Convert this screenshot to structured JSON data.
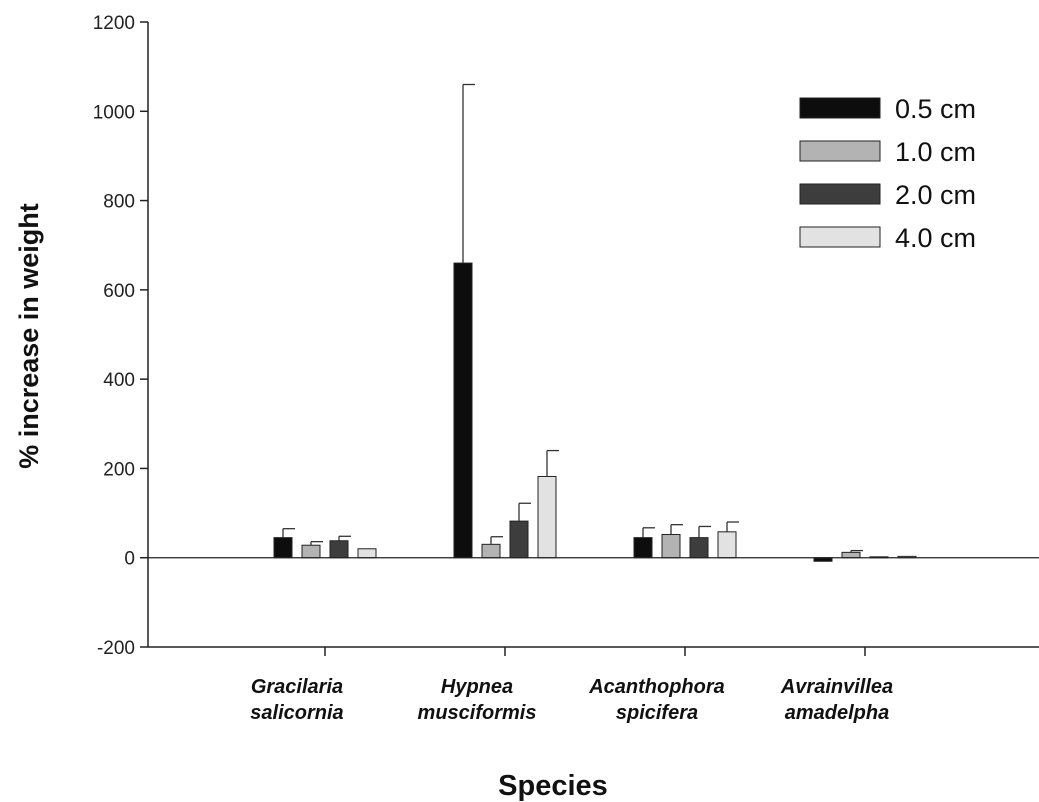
{
  "chart_data": {
    "type": "bar",
    "title": "",
    "xlabel": "Species",
    "ylabel": "% increase in weight",
    "ylim": [
      -200,
      1200
    ],
    "yticks": [
      -200,
      0,
      200,
      400,
      600,
      800,
      1000,
      1200
    ],
    "grid": false,
    "legend_position": "top-right",
    "categories": [
      [
        "Gracilaria",
        "salicornia"
      ],
      [
        "Hypnea",
        "musciformis"
      ],
      [
        "Acanthophora",
        "spicifera"
      ],
      [
        "Avrainvillea",
        "amadelpha"
      ]
    ],
    "series": [
      {
        "name": "0.5 cm",
        "color": "#0d0d0d",
        "values": [
          45,
          660,
          45,
          -8
        ],
        "errors": [
          20,
          400,
          22,
          0
        ]
      },
      {
        "name": "1.0 cm",
        "color": "#b3b3b3",
        "values": [
          28,
          30,
          52,
          12
        ],
        "errors": [
          8,
          17,
          22,
          4
        ]
      },
      {
        "name": "2.0 cm",
        "color": "#3d3d3d",
        "values": [
          38,
          82,
          45,
          2
        ],
        "errors": [
          10,
          40,
          25,
          0
        ]
      },
      {
        "name": "4.0 cm",
        "color": "#e2e2e2",
        "values": [
          20,
          182,
          58,
          3
        ],
        "errors": [
          0,
          58,
          22,
          0
        ]
      }
    ]
  }
}
